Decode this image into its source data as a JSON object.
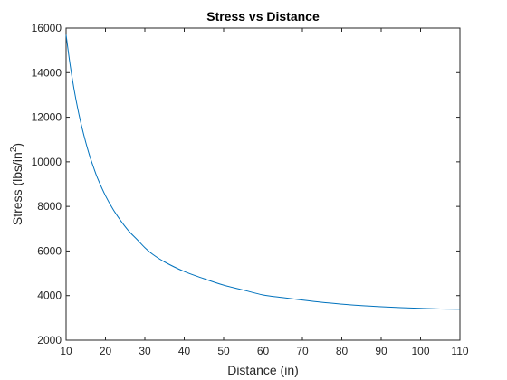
{
  "chart_data": {
    "type": "line",
    "title": "Stress vs Distance",
    "xlabel": "Distance (in)",
    "ylabel": {
      "main": "Stress (lbs/in",
      "sup": "2",
      "tail": ")"
    },
    "xlim": [
      10,
      110
    ],
    "ylim": [
      2000,
      16000
    ],
    "xticks": [
      10,
      20,
      30,
      40,
      50,
      60,
      70,
      80,
      90,
      100,
      110
    ],
    "yticks": [
      2000,
      4000,
      6000,
      8000,
      10000,
      12000,
      14000,
      16000
    ],
    "grid": false,
    "line_color": "#0072BD",
    "series": [
      {
        "x": [
          10,
          11,
          12,
          13,
          14,
          15,
          16,
          17,
          18,
          20,
          22,
          24,
          26,
          28,
          30,
          32,
          35,
          40,
          45,
          50,
          55,
          60,
          65,
          70,
          75,
          80,
          85,
          90,
          95,
          100,
          105,
          110
        ],
        "y": [
          15700,
          14380,
          13280,
          12350,
          11560,
          10870,
          10260,
          9740,
          9260,
          8480,
          7850,
          7330,
          6880,
          6520,
          6150,
          5850,
          5510,
          5080,
          4760,
          4470,
          4250,
          4030,
          3910,
          3800,
          3700,
          3620,
          3550,
          3500,
          3460,
          3430,
          3400,
          3390
        ]
      }
    ]
  }
}
